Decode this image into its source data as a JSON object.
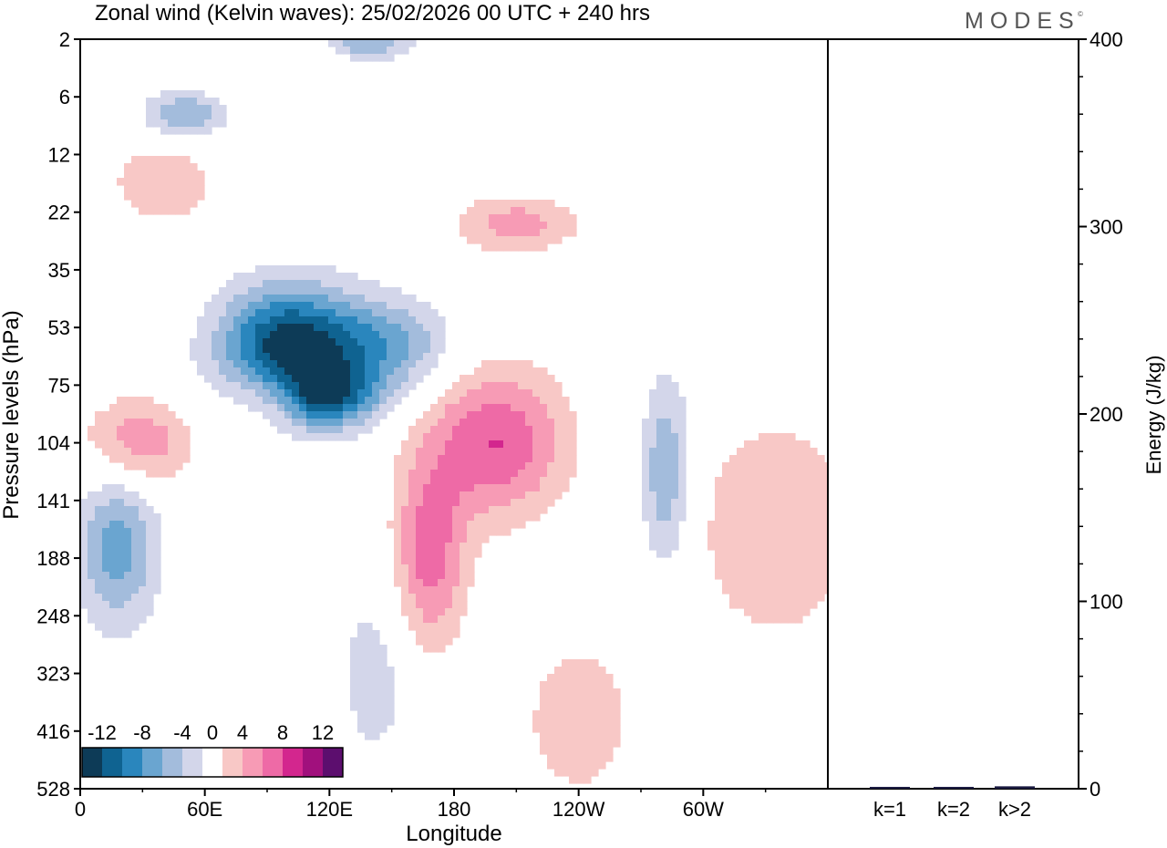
{
  "brand": {
    "name": "MODES",
    "mark": "©"
  },
  "chart_data": [
    {
      "type": "heatmap",
      "title": "Zonal wind (Kelvin waves):  25/02/2026  00 UTC  + 240 hrs",
      "xlabel": "Longitude",
      "ylabel": "Pressure levels (hPa)",
      "x_ticks": [
        "0",
        "60E",
        "120E",
        "180",
        "120W",
        "60W"
      ],
      "x_tick_values": [
        0,
        60,
        120,
        180,
        240,
        300
      ],
      "xlim": [
        0,
        360
      ],
      "y_ticks": [
        "2",
        "6",
        "12",
        "22",
        "35",
        "53",
        "75",
        "104",
        "141",
        "188",
        "248",
        "323",
        "416",
        "528"
      ],
      "colorbar": {
        "labels": [
          "-12",
          "-8",
          "-4",
          "0",
          "4",
          "8",
          "12"
        ],
        "bounds": [
          -14,
          -12,
          -10,
          -8,
          -6,
          -4,
          -2,
          2,
          4,
          6,
          8,
          10,
          12,
          14
        ],
        "colors": [
          "#0d3b57",
          "#0f6391",
          "#2a86bd",
          "#6aa5d0",
          "#a3bcdc",
          "#d3d6ea",
          "#ffffff",
          "#f8c8c6",
          "#f79bb5",
          "#ee6aa6",
          "#d3268e",
          "#a1107d",
          "#5c0e6e"
        ]
      },
      "features": [
        {
          "lon": 101,
          "lev": 5.4,
          "value": -14,
          "r_lon": 34,
          "r_lev": 1.1
        },
        {
          "lon": 117,
          "lev": 6.2,
          "value": -9,
          "r_lon": 26,
          "r_lev": 0.55
        },
        {
          "lon": 150,
          "lev": 5.3,
          "value": -6,
          "r_lon": 30,
          "r_lev": 0.8
        },
        {
          "lon": 18,
          "lev": 8.8,
          "value": -7,
          "r_lon": 20,
          "r_lev": 1.4
        },
        {
          "lon": 142,
          "lev": 11.0,
          "value": -3,
          "r_lon": 20,
          "r_lev": 1.8
        },
        {
          "lon": 282,
          "lev": 7.5,
          "value": -6,
          "r_lon": 12,
          "r_lev": 1.7
        },
        {
          "lon": 50,
          "lev": 1.3,
          "value": -6,
          "r_lon": 20,
          "r_lev": 0.4
        },
        {
          "lon": 200,
          "lev": 7.0,
          "value": 8,
          "r_lon": 34,
          "r_lev": 1.3
        },
        {
          "lon": 168,
          "lev": 9.0,
          "value": 7,
          "r_lon": 18,
          "r_lev": 1.6
        },
        {
          "lon": 240,
          "lev": 11.8,
          "value": 4,
          "r_lon": 25,
          "r_lev": 1.3
        },
        {
          "lon": 335,
          "lev": 8.5,
          "value": 4,
          "r_lon": 40,
          "r_lev": 2.0
        },
        {
          "lon": 95,
          "lev": 6.2,
          "value": 6,
          "r_lon": 22,
          "r_lev": 0.6
        },
        {
          "lon": 28,
          "lev": 7.0,
          "value": 6,
          "r_lon": 26,
          "r_lev": 0.8
        },
        {
          "lon": 40,
          "lev": 2.5,
          "value": 4,
          "r_lon": 25,
          "r_lev": 0.7
        },
        {
          "lon": 210,
          "lev": 3.2,
          "value": 5,
          "r_lon": 30,
          "r_lev": 0.5
        },
        {
          "lon": 140,
          "lev": 0.05,
          "value": -6,
          "r_lon": 20,
          "r_lev": 0.3
        }
      ]
    },
    {
      "type": "bar",
      "categories": [
        "k=1",
        "k=2",
        "k>2"
      ],
      "values": [
        0.5,
        0.5,
        0.8
      ],
      "ylabel": "Energy (J/kg)",
      "ylim": [
        0,
        400
      ],
      "y_ticks": [
        "0",
        "100",
        "200",
        "300",
        "400"
      ]
    }
  ]
}
